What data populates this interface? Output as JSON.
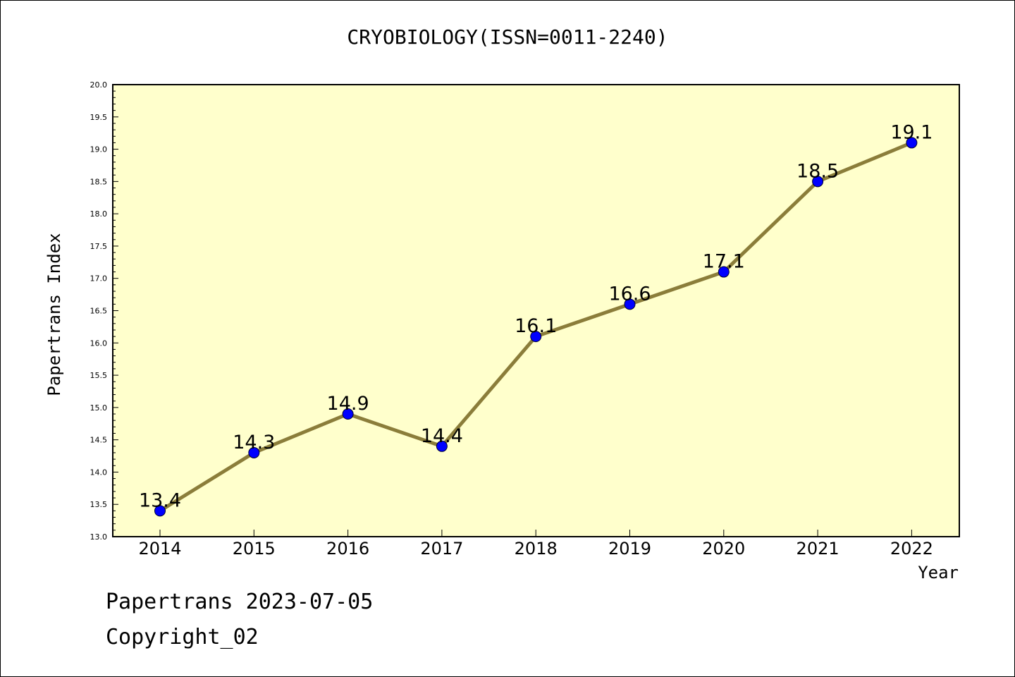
{
  "title": "CRYOBIOLOGY(ISSN=0011-2240)",
  "footer": {
    "line1": "Papertrans 2023-07-05",
    "line2": "Copyright_02"
  },
  "colors": {
    "plot_background": "#ffffcc",
    "line": "#8b7d3a",
    "marker": "#0000ff"
  },
  "chart_data": {
    "type": "line",
    "x": [
      "2014",
      "2015",
      "2016",
      "2017",
      "2018",
      "2019",
      "2020",
      "2021",
      "2022"
    ],
    "series": [
      {
        "values": [
          13.4,
          14.3,
          14.9,
          14.4,
          16.1,
          16.6,
          17.1,
          18.5,
          19.1
        ]
      }
    ],
    "data_labels": [
      "13.4",
      "14.3",
      "14.9",
      "14.4",
      "16.1",
      "16.6",
      "17.1",
      "18.5",
      "19.1"
    ],
    "xlabel": "Year",
    "ylabel": "Papertrans Index",
    "ylim": [
      13.0,
      20.0
    ],
    "yticks": [
      "13.0",
      "13.5",
      "14.0",
      "14.5",
      "15.0",
      "15.5",
      "16.0",
      "16.5",
      "17.0",
      "17.5",
      "18.0",
      "18.5",
      "19.0",
      "19.5",
      "20.0"
    ],
    "grid": false,
    "legend": "none"
  }
}
